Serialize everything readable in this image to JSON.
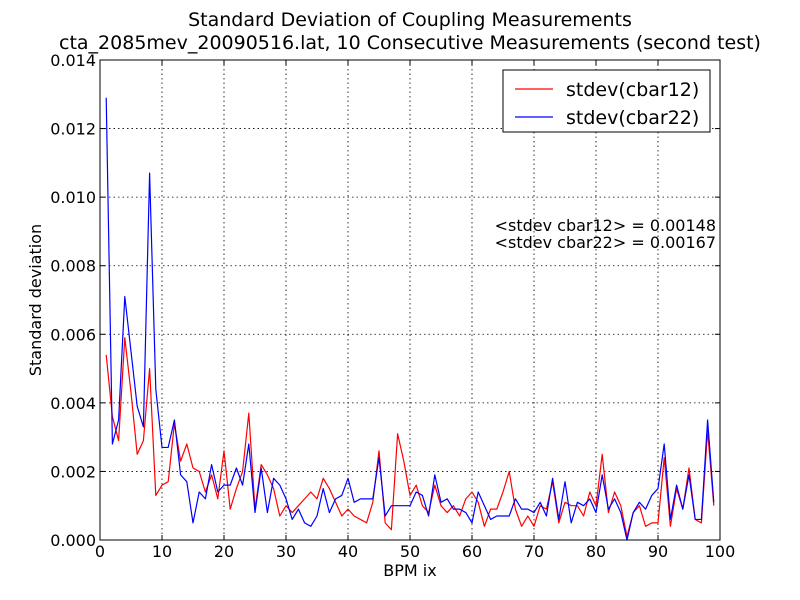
{
  "chart_data": {
    "type": "line",
    "title": "Standard Deviation of Coupling Measurements",
    "subtitle": "cta_2085mev_20090516.lat, 10 Consecutive Measurements (second test)",
    "xlabel": "BPM ix",
    "ylabel": "Standard deviation",
    "xlim": [
      0,
      100
    ],
    "ylim": [
      0,
      0.014
    ],
    "x_ticks": [
      "0",
      "10",
      "20",
      "30",
      "40",
      "50",
      "60",
      "70",
      "80",
      "90",
      "100"
    ],
    "y_ticks": [
      "0.000",
      "0.002",
      "0.004",
      "0.006",
      "0.008",
      "0.010",
      "0.012",
      "0.014"
    ],
    "grid": true,
    "legend_position": "top-right",
    "annotations": [
      "<stdev cbar12> = 0.00148",
      "<stdev cbar22> = 0.00167"
    ],
    "x": [
      1,
      2,
      3,
      4,
      5,
      6,
      7,
      8,
      9,
      10,
      11,
      12,
      13,
      14,
      15,
      16,
      17,
      18,
      19,
      20,
      21,
      22,
      23,
      24,
      25,
      26,
      27,
      28,
      29,
      30,
      31,
      32,
      33,
      34,
      35,
      36,
      37,
      38,
      39,
      40,
      41,
      42,
      43,
      44,
      45,
      46,
      47,
      48,
      49,
      50,
      51,
      52,
      53,
      54,
      55,
      56,
      57,
      58,
      59,
      60,
      61,
      62,
      63,
      64,
      65,
      66,
      67,
      68,
      69,
      70,
      71,
      72,
      73,
      74,
      75,
      76,
      77,
      78,
      79,
      80,
      81,
      82,
      83,
      84,
      85,
      86,
      87,
      88,
      89,
      90,
      91,
      92,
      93,
      94,
      95,
      96,
      97,
      98,
      99
    ],
    "series": [
      {
        "name": "stdev(cbar12)",
        "color": "#ff0000",
        "values": [
          0.0054,
          0.0036,
          0.0029,
          0.0059,
          0.0043,
          0.0025,
          0.0029,
          0.005,
          0.0013,
          0.0016,
          0.0017,
          0.0034,
          0.0023,
          0.0028,
          0.0021,
          0.002,
          0.0014,
          0.0019,
          0.0012,
          0.0026,
          0.0009,
          0.0015,
          0.002,
          0.0037,
          0.0009,
          0.0022,
          0.0019,
          0.0015,
          0.0007,
          0.001,
          0.0008,
          0.001,
          0.0012,
          0.0014,
          0.0012,
          0.0018,
          0.0015,
          0.0011,
          0.0007,
          0.0009,
          0.0007,
          0.0006,
          0.0005,
          0.0011,
          0.0026,
          0.0005,
          0.0003,
          0.0031,
          0.0023,
          0.0013,
          0.0016,
          0.001,
          0.0008,
          0.0016,
          0.001,
          0.0008,
          0.001,
          0.0007,
          0.0012,
          0.0014,
          0.0011,
          0.0004,
          0.0009,
          0.0009,
          0.0014,
          0.002,
          0.0009,
          0.0004,
          0.0007,
          0.0004,
          0.001,
          0.0009,
          0.0017,
          0.0005,
          0.0011,
          0.001,
          0.001,
          0.0007,
          0.0014,
          0.001,
          0.0025,
          0.0008,
          0.0014,
          0.001,
          0.0001,
          0.0008,
          0.001,
          0.0004,
          0.0005,
          0.0005,
          0.0024,
          0.0004,
          0.0015,
          0.0009,
          0.0021,
          0.0006,
          0.0005,
          0.0032,
          0.001
        ]
      },
      {
        "name": "stdev(cbar22)",
        "color": "#0000ff",
        "values": [
          0.0129,
          0.0028,
          0.0035,
          0.0071,
          0.0055,
          0.0039,
          0.0033,
          0.0107,
          0.0044,
          0.0027,
          0.0027,
          0.0035,
          0.0019,
          0.0017,
          0.0005,
          0.0014,
          0.0012,
          0.0022,
          0.0014,
          0.0016,
          0.0016,
          0.0021,
          0.0016,
          0.0028,
          0.0008,
          0.0021,
          0.0008,
          0.0018,
          0.0016,
          0.0012,
          0.0006,
          0.0009,
          0.0005,
          0.0004,
          0.0007,
          0.0015,
          0.0008,
          0.0012,
          0.0013,
          0.0018,
          0.0011,
          0.0012,
          0.0012,
          0.0012,
          0.0024,
          0.0007,
          0.001,
          0.001,
          0.001,
          0.001,
          0.0014,
          0.0013,
          0.0007,
          0.0019,
          0.0011,
          0.0012,
          0.0009,
          0.0009,
          0.0008,
          0.0005,
          0.0014,
          0.001,
          0.0006,
          0.0007,
          0.0007,
          0.0007,
          0.0012,
          0.0009,
          0.0009,
          0.0008,
          0.0011,
          0.0007,
          0.0018,
          0.0006,
          0.0017,
          0.0005,
          0.0011,
          0.001,
          0.0012,
          0.0008,
          0.0019,
          0.0009,
          0.0012,
          0.0008,
          0.0,
          0.0008,
          0.0011,
          0.0009,
          0.0013,
          0.0015,
          0.0028,
          0.0006,
          0.0016,
          0.0009,
          0.0019,
          0.0006,
          0.0006,
          0.0035,
          0.0011
        ]
      }
    ]
  }
}
